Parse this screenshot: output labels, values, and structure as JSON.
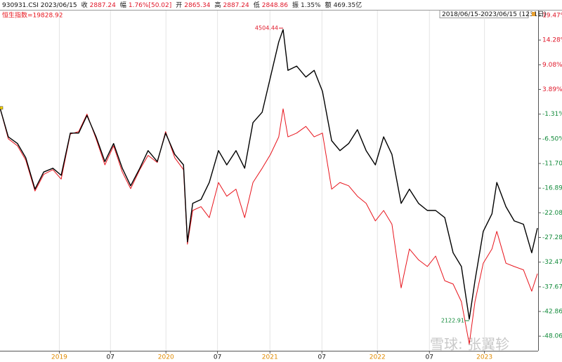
{
  "header": {
    "code": "930931.CSI 2023/06/15",
    "items": [
      {
        "label": "收",
        "value": "2887.24",
        "color": "#e0182a"
      },
      {
        "label": "幅",
        "value": "1.76%[50.02]",
        "color": "#e0182a"
      },
      {
        "label": "开",
        "value": "2865.34",
        "color": "#e0182a"
      },
      {
        "label": "高",
        "value": "2887.24",
        "color": "#e0182a"
      },
      {
        "label": "低",
        "value": "2848.86",
        "color": "#e0182a"
      },
      {
        "label": "振",
        "value": "1.35%",
        "color": "#222222"
      },
      {
        "label": "额",
        "value": "469.35亿",
        "color": "#222222"
      }
    ]
  },
  "watermark": "雪球: 张翼轸",
  "chart_data": {
    "type": "line",
    "range_label": "2018/06/15-2023/06/15 (1231日)",
    "overlay_label": "恒生指数=19828.92",
    "x": [
      0,
      19,
      40,
      59,
      80,
      100,
      121,
      140,
      161,
      180,
      199,
      220,
      240,
      260,
      280,
      299,
      320,
      339,
      360,
      379,
      400,
      420,
      429,
      441,
      460,
      479,
      500,
      519,
      540,
      560,
      579,
      600,
      619,
      638,
      648,
      659,
      679,
      700,
      719,
      738,
      759,
      778,
      798,
      818,
      838,
      859,
      878,
      897,
      918,
      937,
      958,
      978,
      997,
      1018,
      1037,
      1056,
      1074,
      1087,
      1106,
      1126,
      1137,
      1158,
      1177,
      1198,
      1217,
      1230
    ],
    "series": [
      {
        "name": "930931.CSI",
        "color": "#000000",
        "values": [
          0,
          -6.1,
          -7.5,
          -10.5,
          -17.1,
          -13.5,
          -12.7,
          -14.2,
          -5.3,
          -5.3,
          -1.6,
          -6.1,
          -11.3,
          -7.5,
          -12.7,
          -16.4,
          -12.7,
          -9.0,
          -11.3,
          -5.3,
          -9.8,
          -12.0,
          -28.2,
          -20.1,
          -19.3,
          -15.7,
          -9.0,
          -12.0,
          -9.0,
          -12.7,
          -3.1,
          -0.9,
          6.5,
          13.9,
          16.5,
          7.9,
          8.8,
          6.5,
          7.9,
          3.5,
          -6.9,
          -9.0,
          -7.5,
          -4.6,
          -9.0,
          -12.0,
          -6.1,
          -9.8,
          -20.1,
          -17.1,
          -20.1,
          -21.6,
          -21.6,
          -23.1,
          -30.5,
          -33.4,
          -44.5,
          -36.4,
          -26.0,
          -22.3,
          -15.7,
          -20.8,
          -23.8,
          -24.5,
          -30.5,
          -25.3
        ]
      },
      {
        "name": "恒生指数",
        "color": "#e8141c",
        "values": [
          0,
          -6.5,
          -8,
          -11,
          -17.5,
          -14,
          -13,
          -15,
          -5.5,
          -5,
          -1.3,
          -6.5,
          -12,
          -8,
          -13.5,
          -17,
          -13,
          -10,
          -11.5,
          -5,
          -10.5,
          -13,
          -28.7,
          -21.6,
          -20.8,
          -23.1,
          -15.7,
          -18.6,
          -17.1,
          -23.1,
          -15.7,
          -12.7,
          -9.8,
          -6.1,
          -0.2,
          -6.1,
          -5.3,
          -3.9,
          -6.1,
          -5.3,
          -17.1,
          -15.7,
          -16.4,
          -18.6,
          -20.1,
          -23.8,
          -21.6,
          -24.5,
          -37.9,
          -29.7,
          -32.0,
          -33.4,
          -31.2,
          -36.4,
          -37.1,
          -40.8,
          -49.7,
          -40.8,
          -32.7,
          -29.7,
          -26.0,
          -32.7,
          -33.4,
          -34.1,
          -38.6,
          -34.9
        ]
      }
    ],
    "annotations": [
      {
        "text": "4504.44",
        "series": 0,
        "index": 34
      },
      {
        "text": "2122.91",
        "series": 0,
        "index": 56
      }
    ],
    "xlim": [
      0,
      1230
    ],
    "xticks": [
      {
        "value": 135,
        "label": "2019"
      },
      {
        "value": 252,
        "label": "07"
      },
      {
        "value": 379,
        "label": "2020"
      },
      {
        "value": 497,
        "label": "07"
      },
      {
        "value": 617,
        "label": "2021"
      },
      {
        "value": 736,
        "label": "07"
      },
      {
        "value": 863,
        "label": "2022"
      },
      {
        "value": 982,
        "label": "07"
      },
      {
        "value": 1108,
        "label": "2023"
      }
    ],
    "ylim": [
      -51.14,
      20.5
    ],
    "yticks": [
      {
        "value": 19.47,
        "label": "19.47%"
      },
      {
        "value": 14.28,
        "label": "14.28%"
      },
      {
        "value": 9.08,
        "label": "9.08%"
      },
      {
        "value": 3.89,
        "label": "3.89%"
      },
      {
        "value": -1.31,
        "label": "-1.31%"
      },
      {
        "value": -6.5,
        "label": "-6.50%"
      },
      {
        "value": -11.7,
        "label": "-11.70%"
      },
      {
        "value": -16.89,
        "label": "-16.89%"
      },
      {
        "value": -22.08,
        "label": "-22.08%"
      },
      {
        "value": -27.28,
        "label": "-27.28%"
      },
      {
        "value": -32.47,
        "label": "-32.47%"
      },
      {
        "value": -37.67,
        "label": "-37.67%"
      },
      {
        "value": -42.86,
        "label": "-42.86%"
      },
      {
        "value": -48.06,
        "label": "-48.06%"
      }
    ],
    "grid": true
  }
}
